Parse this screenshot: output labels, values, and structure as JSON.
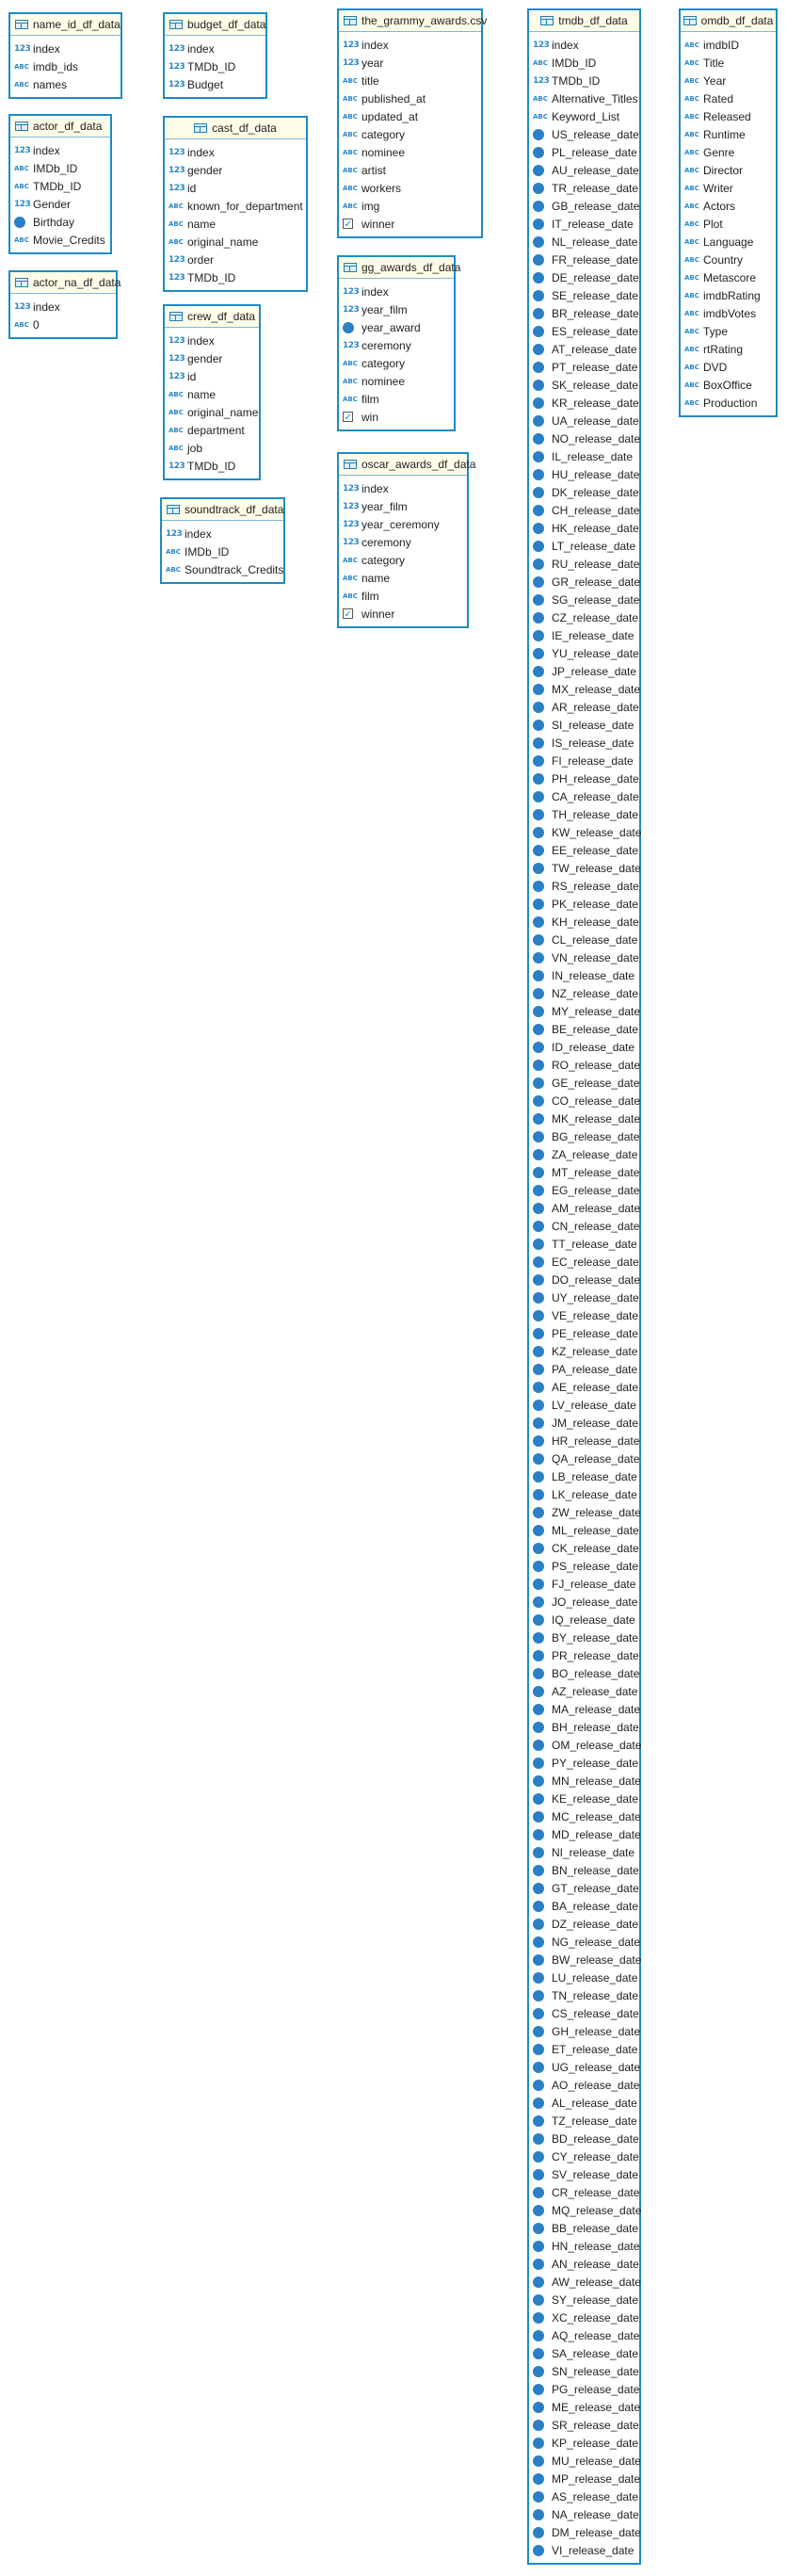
{
  "entities": [
    {
      "name": "name_id_df_data",
      "columns": [
        {
          "type": "int",
          "name": "index"
        },
        {
          "type": "text",
          "name": "imdb_ids"
        },
        {
          "type": "text",
          "name": "names"
        }
      ]
    },
    {
      "name": "actor_df_data",
      "columns": [
        {
          "type": "int",
          "name": "index"
        },
        {
          "type": "text",
          "name": "IMDb_ID"
        },
        {
          "type": "text",
          "name": "TMDb_ID"
        },
        {
          "type": "int",
          "name": "Gender"
        },
        {
          "type": "date",
          "name": "Birthday"
        },
        {
          "type": "text",
          "name": "Movie_Credits"
        }
      ]
    },
    {
      "name": "actor_na_df_data",
      "columns": [
        {
          "type": "int",
          "name": "index"
        },
        {
          "type": "text",
          "name": "0"
        }
      ]
    },
    {
      "name": "budget_df_data",
      "columns": [
        {
          "type": "int",
          "name": "index"
        },
        {
          "type": "int",
          "name": "TMDb_ID"
        },
        {
          "type": "int",
          "name": "Budget"
        }
      ]
    },
    {
      "name": "cast_df_data",
      "columns": [
        {
          "type": "int",
          "name": "index"
        },
        {
          "type": "int",
          "name": "gender"
        },
        {
          "type": "int",
          "name": "id"
        },
        {
          "type": "text",
          "name": "known_for_department"
        },
        {
          "type": "text",
          "name": "name"
        },
        {
          "type": "text",
          "name": "original_name"
        },
        {
          "type": "int",
          "name": "order"
        },
        {
          "type": "int",
          "name": "TMDb_ID"
        }
      ]
    },
    {
      "name": "crew_df_data",
      "columns": [
        {
          "type": "int",
          "name": "index"
        },
        {
          "type": "int",
          "name": "gender"
        },
        {
          "type": "int",
          "name": "id"
        },
        {
          "type": "text",
          "name": "name"
        },
        {
          "type": "text",
          "name": "original_name"
        },
        {
          "type": "text",
          "name": "department"
        },
        {
          "type": "text",
          "name": "job"
        },
        {
          "type": "int",
          "name": "TMDb_ID"
        }
      ]
    },
    {
      "name": "soundtrack_df_data",
      "columns": [
        {
          "type": "int",
          "name": "index"
        },
        {
          "type": "text",
          "name": "IMDb_ID"
        },
        {
          "type": "text",
          "name": "Soundtrack_Credits"
        }
      ]
    },
    {
      "name": "the_grammy_awards.csv",
      "columns": [
        {
          "type": "int",
          "name": "index"
        },
        {
          "type": "int",
          "name": "year"
        },
        {
          "type": "text",
          "name": "title"
        },
        {
          "type": "text",
          "name": "published_at"
        },
        {
          "type": "text",
          "name": "updated_at"
        },
        {
          "type": "text",
          "name": "category"
        },
        {
          "type": "text",
          "name": "nominee"
        },
        {
          "type": "text",
          "name": "artist"
        },
        {
          "type": "text",
          "name": "workers"
        },
        {
          "type": "text",
          "name": "img"
        },
        {
          "type": "bool",
          "name": "winner"
        }
      ]
    },
    {
      "name": "gg_awards_df_data",
      "columns": [
        {
          "type": "int",
          "name": "index"
        },
        {
          "type": "int",
          "name": "year_film"
        },
        {
          "type": "date",
          "name": "year_award"
        },
        {
          "type": "int",
          "name": "ceremony"
        },
        {
          "type": "text",
          "name": "category"
        },
        {
          "type": "text",
          "name": "nominee"
        },
        {
          "type": "text",
          "name": "film"
        },
        {
          "type": "bool",
          "name": "win"
        }
      ]
    },
    {
      "name": "oscar_awards_df_data",
      "columns": [
        {
          "type": "int",
          "name": "index"
        },
        {
          "type": "int",
          "name": "year_film"
        },
        {
          "type": "int",
          "name": "year_ceremony"
        },
        {
          "type": "int",
          "name": "ceremony"
        },
        {
          "type": "text",
          "name": "category"
        },
        {
          "type": "text",
          "name": "name"
        },
        {
          "type": "text",
          "name": "film"
        },
        {
          "type": "bool",
          "name": "winner"
        }
      ]
    },
    {
      "name": "tmdb_df_data",
      "columns": [
        {
          "type": "int",
          "name": "index"
        },
        {
          "type": "text",
          "name": "IMDb_ID"
        },
        {
          "type": "int",
          "name": "TMDb_ID"
        },
        {
          "type": "text",
          "name": "Alternative_Titles"
        },
        {
          "type": "text",
          "name": "Keyword_List"
        },
        {
          "type": "date",
          "name": "US_release_date"
        },
        {
          "type": "date",
          "name": "PL_release_date"
        },
        {
          "type": "date",
          "name": "AU_release_date"
        },
        {
          "type": "date",
          "name": "TR_release_date"
        },
        {
          "type": "date",
          "name": "GB_release_date"
        },
        {
          "type": "date",
          "name": "IT_release_date"
        },
        {
          "type": "date",
          "name": "NL_release_date"
        },
        {
          "type": "date",
          "name": "FR_release_date"
        },
        {
          "type": "date",
          "name": "DE_release_date"
        },
        {
          "type": "date",
          "name": "SE_release_date"
        },
        {
          "type": "date",
          "name": "BR_release_date"
        },
        {
          "type": "date",
          "name": "ES_release_date"
        },
        {
          "type": "date",
          "name": "AT_release_date"
        },
        {
          "type": "date",
          "name": "PT_release_date"
        },
        {
          "type": "date",
          "name": "SK_release_date"
        },
        {
          "type": "date",
          "name": "KR_release_date"
        },
        {
          "type": "date",
          "name": "UA_release_date"
        },
        {
          "type": "date",
          "name": "NO_release_date"
        },
        {
          "type": "date",
          "name": "IL_release_date"
        },
        {
          "type": "date",
          "name": "HU_release_date"
        },
        {
          "type": "date",
          "name": "DK_release_date"
        },
        {
          "type": "date",
          "name": "CH_release_date"
        },
        {
          "type": "date",
          "name": "HK_release_date"
        },
        {
          "type": "date",
          "name": "LT_release_date"
        },
        {
          "type": "date",
          "name": "RU_release_date"
        },
        {
          "type": "date",
          "name": "GR_release_date"
        },
        {
          "type": "date",
          "name": "SG_release_date"
        },
        {
          "type": "date",
          "name": "CZ_release_date"
        },
        {
          "type": "date",
          "name": "IE_release_date"
        },
        {
          "type": "date",
          "name": "YU_release_date"
        },
        {
          "type": "date",
          "name": "JP_release_date"
        },
        {
          "type": "date",
          "name": "MX_release_date"
        },
        {
          "type": "date",
          "name": "AR_release_date"
        },
        {
          "type": "date",
          "name": "SI_release_date"
        },
        {
          "type": "date",
          "name": "IS_release_date"
        },
        {
          "type": "date",
          "name": "FI_release_date"
        },
        {
          "type": "date",
          "name": "PH_release_date"
        },
        {
          "type": "date",
          "name": "CA_release_date"
        },
        {
          "type": "date",
          "name": "TH_release_date"
        },
        {
          "type": "date",
          "name": "KW_release_date"
        },
        {
          "type": "date",
          "name": "EE_release_date"
        },
        {
          "type": "date",
          "name": "TW_release_date"
        },
        {
          "type": "date",
          "name": "RS_release_date"
        },
        {
          "type": "date",
          "name": "PK_release_date"
        },
        {
          "type": "date",
          "name": "KH_release_date"
        },
        {
          "type": "date",
          "name": "CL_release_date"
        },
        {
          "type": "date",
          "name": "VN_release_date"
        },
        {
          "type": "date",
          "name": "IN_release_date"
        },
        {
          "type": "date",
          "name": "NZ_release_date"
        },
        {
          "type": "date",
          "name": "MY_release_date"
        },
        {
          "type": "date",
          "name": "BE_release_date"
        },
        {
          "type": "date",
          "name": "ID_release_date"
        },
        {
          "type": "date",
          "name": "RO_release_date"
        },
        {
          "type": "date",
          "name": "GE_release_date"
        },
        {
          "type": "date",
          "name": "CO_release_date"
        },
        {
          "type": "date",
          "name": "MK_release_date"
        },
        {
          "type": "date",
          "name": "BG_release_date"
        },
        {
          "type": "date",
          "name": "ZA_release_date"
        },
        {
          "type": "date",
          "name": "MT_release_date"
        },
        {
          "type": "date",
          "name": "EG_release_date"
        },
        {
          "type": "date",
          "name": "AM_release_date"
        },
        {
          "type": "date",
          "name": "CN_release_date"
        },
        {
          "type": "date",
          "name": "TT_release_date"
        },
        {
          "type": "date",
          "name": "EC_release_date"
        },
        {
          "type": "date",
          "name": "DO_release_date"
        },
        {
          "type": "date",
          "name": "UY_release_date"
        },
        {
          "type": "date",
          "name": "VE_release_date"
        },
        {
          "type": "date",
          "name": "PE_release_date"
        },
        {
          "type": "date",
          "name": "KZ_release_date"
        },
        {
          "type": "date",
          "name": "PA_release_date"
        },
        {
          "type": "date",
          "name": "AE_release_date"
        },
        {
          "type": "date",
          "name": "LV_release_date"
        },
        {
          "type": "date",
          "name": "JM_release_date"
        },
        {
          "type": "date",
          "name": "HR_release_date"
        },
        {
          "type": "date",
          "name": "QA_release_date"
        },
        {
          "type": "date",
          "name": "LB_release_date"
        },
        {
          "type": "date",
          "name": "LK_release_date"
        },
        {
          "type": "date",
          "name": "ZW_release_date"
        },
        {
          "type": "date",
          "name": "ML_release_date"
        },
        {
          "type": "date",
          "name": "CK_release_date"
        },
        {
          "type": "date",
          "name": "PS_release_date"
        },
        {
          "type": "date",
          "name": "FJ_release_date"
        },
        {
          "type": "date",
          "name": "JO_release_date"
        },
        {
          "type": "date",
          "name": "IQ_release_date"
        },
        {
          "type": "date",
          "name": "BY_release_date"
        },
        {
          "type": "date",
          "name": "PR_release_date"
        },
        {
          "type": "date",
          "name": "BO_release_date"
        },
        {
          "type": "date",
          "name": "AZ_release_date"
        },
        {
          "type": "date",
          "name": "MA_release_date"
        },
        {
          "type": "date",
          "name": "BH_release_date"
        },
        {
          "type": "date",
          "name": "OM_release_date"
        },
        {
          "type": "date",
          "name": "PY_release_date"
        },
        {
          "type": "date",
          "name": "MN_release_date"
        },
        {
          "type": "date",
          "name": "KE_release_date"
        },
        {
          "type": "date",
          "name": "MC_release_date"
        },
        {
          "type": "date",
          "name": "MD_release_date"
        },
        {
          "type": "date",
          "name": "NI_release_date"
        },
        {
          "type": "date",
          "name": "BN_release_date"
        },
        {
          "type": "date",
          "name": "GT_release_date"
        },
        {
          "type": "date",
          "name": "BA_release_date"
        },
        {
          "type": "date",
          "name": "DZ_release_date"
        },
        {
          "type": "date",
          "name": "NG_release_date"
        },
        {
          "type": "date",
          "name": "BW_release_date"
        },
        {
          "type": "date",
          "name": "LU_release_date"
        },
        {
          "type": "date",
          "name": "TN_release_date"
        },
        {
          "type": "date",
          "name": "CS_release_date"
        },
        {
          "type": "date",
          "name": "GH_release_date"
        },
        {
          "type": "date",
          "name": "ET_release_date"
        },
        {
          "type": "date",
          "name": "UG_release_date"
        },
        {
          "type": "date",
          "name": "AO_release_date"
        },
        {
          "type": "date",
          "name": "AL_release_date"
        },
        {
          "type": "date",
          "name": "TZ_release_date"
        },
        {
          "type": "date",
          "name": "BD_release_date"
        },
        {
          "type": "date",
          "name": "CY_release_date"
        },
        {
          "type": "date",
          "name": "SV_release_date"
        },
        {
          "type": "date",
          "name": "CR_release_date"
        },
        {
          "type": "date",
          "name": "MQ_release_date"
        },
        {
          "type": "date",
          "name": "BB_release_date"
        },
        {
          "type": "date",
          "name": "HN_release_date"
        },
        {
          "type": "date",
          "name": "AN_release_date"
        },
        {
          "type": "date",
          "name": "AW_release_date"
        },
        {
          "type": "date",
          "name": "SY_release_date"
        },
        {
          "type": "date",
          "name": "XC_release_date"
        },
        {
          "type": "date",
          "name": "AQ_release_date"
        },
        {
          "type": "date",
          "name": "SA_release_date"
        },
        {
          "type": "date",
          "name": "SN_release_date"
        },
        {
          "type": "date",
          "name": "PG_release_date"
        },
        {
          "type": "date",
          "name": "ME_release_date"
        },
        {
          "type": "date",
          "name": "SR_release_date"
        },
        {
          "type": "date",
          "name": "KP_release_date"
        },
        {
          "type": "date",
          "name": "MU_release_date"
        },
        {
          "type": "date",
          "name": "MP_release_date"
        },
        {
          "type": "date",
          "name": "AS_release_date"
        },
        {
          "type": "date",
          "name": "NA_release_date"
        },
        {
          "type": "date",
          "name": "DM_release_date"
        },
        {
          "type": "date",
          "name": "VI_release_date"
        }
      ]
    },
    {
      "name": "omdb_df_data",
      "columns": [
        {
          "type": "text",
          "name": "imdbID"
        },
        {
          "type": "text",
          "name": "Title"
        },
        {
          "type": "text",
          "name": "Year"
        },
        {
          "type": "text",
          "name": "Rated"
        },
        {
          "type": "text",
          "name": "Released"
        },
        {
          "type": "text",
          "name": "Runtime"
        },
        {
          "type": "text",
          "name": "Genre"
        },
        {
          "type": "text",
          "name": "Director"
        },
        {
          "type": "text",
          "name": "Writer"
        },
        {
          "type": "text",
          "name": "Actors"
        },
        {
          "type": "text",
          "name": "Plot"
        },
        {
          "type": "text",
          "name": "Language"
        },
        {
          "type": "text",
          "name": "Country"
        },
        {
          "type": "text",
          "name": "Metascore"
        },
        {
          "type": "text",
          "name": "imdbRating"
        },
        {
          "type": "text",
          "name": "imdbVotes"
        },
        {
          "type": "text",
          "name": "Type"
        },
        {
          "type": "text",
          "name": "rtRating"
        },
        {
          "type": "text",
          "name": "DVD"
        },
        {
          "type": "text",
          "name": "BoxOffice"
        },
        {
          "type": "text",
          "name": "Production"
        }
      ]
    }
  ]
}
